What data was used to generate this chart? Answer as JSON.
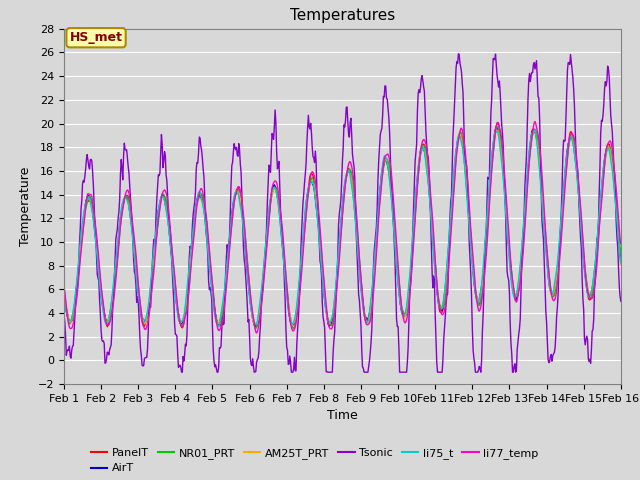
{
  "title": "Temperatures",
  "xlabel": "Time",
  "ylabel": "Temperature",
  "ylim": [
    -2,
    28
  ],
  "xlim": [
    0,
    15
  ],
  "xtick_labels": [
    "Feb 1",
    "Feb 2",
    "Feb 3",
    "Feb 4",
    "Feb 5",
    "Feb 6",
    "Feb 7",
    "Feb 8",
    "Feb 9",
    "Feb 10",
    "Feb 11",
    "Feb 12",
    "Feb 13",
    "Feb 14",
    "Feb 15",
    "Feb 16"
  ],
  "xtick_positions": [
    0,
    1,
    2,
    3,
    4,
    5,
    6,
    7,
    8,
    9,
    10,
    11,
    12,
    13,
    14,
    15
  ],
  "series_names": [
    "PanelT",
    "AirT",
    "NR01_PRT",
    "AM25T_PRT",
    "Tsonic",
    "li75_t",
    "li77_temp"
  ],
  "series_colors": [
    "#ff0000",
    "#0000cc",
    "#00cc00",
    "#ffaa00",
    "#8800cc",
    "#00cccc",
    "#ff00cc"
  ],
  "series_linewidths": [
    1.0,
    1.0,
    1.0,
    1.0,
    1.0,
    1.0,
    1.0
  ],
  "annotation_text": "HS_met",
  "annotation_color": "#880000",
  "annotation_bg": "#ffffaa",
  "annotation_border": "#aa8800",
  "fig_bg": "#d8d8d8",
  "plot_bg": "#d8d8d8",
  "grid_color": "#ffffff",
  "title_fontsize": 11,
  "axis_fontsize": 8,
  "legend_fontsize": 8
}
